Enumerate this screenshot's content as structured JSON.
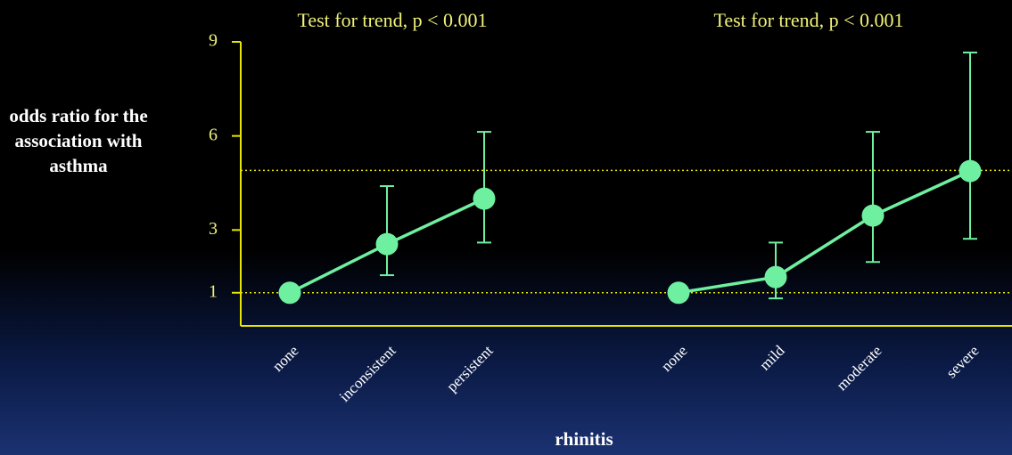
{
  "chart_data": {
    "type": "line",
    "annotations": [
      "Test for trend, p < 0.001",
      "Test for trend, p < 0.001"
    ],
    "ylabel": "odds ratio for the association with asthma",
    "xlabel": "rhinitis",
    "categories": [
      "none",
      "inconsistent",
      "persistent",
      null,
      "none",
      "mild",
      "moderate",
      "severe"
    ],
    "series": [
      {
        "color": "#6ff0a0",
        "values": [
          1,
          2.55,
          4.0,
          null,
          null,
          null,
          null,
          null
        ],
        "ci_low": [
          null,
          1.56,
          2.6,
          null,
          null,
          null,
          null,
          null
        ],
        "ci_high": [
          null,
          4.4,
          6.13,
          null,
          null,
          null,
          null,
          null
        ]
      },
      {
        "color": "#6ff0a0",
        "values": [
          null,
          null,
          null,
          null,
          1,
          1.5,
          3.46,
          4.88
        ],
        "ci_low": [
          null,
          null,
          null,
          null,
          null,
          0.82,
          1.98,
          2.72
        ],
        "ci_high": [
          null,
          null,
          null,
          null,
          null,
          2.6,
          6.13,
          8.66
        ]
      }
    ],
    "ylim": [
      0,
      9
    ],
    "yticks": [
      1,
      3,
      6,
      9
    ],
    "reference_lines": [
      1,
      4.9
    ],
    "axis_color": "#e6e600"
  }
}
